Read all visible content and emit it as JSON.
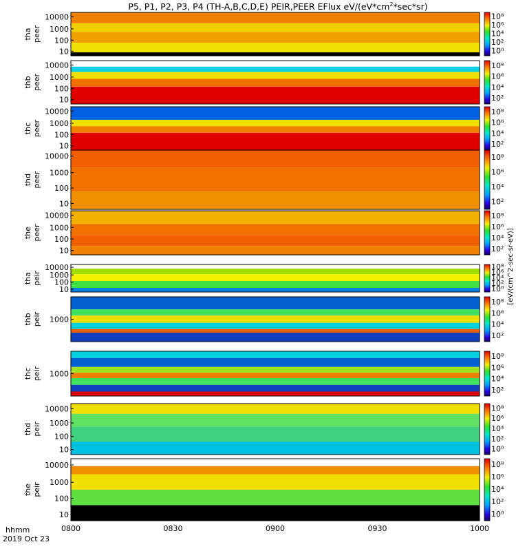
{
  "chart_data": {
    "type": "heatmap",
    "title": "P5, P1, P2, P3, P4 (TH-A,B,C,D,E) PEIR,PEER EFlux eV/(eV*cm²*sec*sr)",
    "title_parts": {
      "main": "P5, P1, P2, P3, P4 (TH-A,B,C,D,E) PEIR,PEER EFlux eV/(eV*cm",
      "sup": "2",
      "tail": "*sec*sr)"
    },
    "x_stamp": [
      "hhmm",
      "2019 Oct 23"
    ],
    "xticks": [
      "0800",
      "0830",
      "0900",
      "0930",
      "1000"
    ],
    "x_range": [
      "08:00",
      "10:00"
    ],
    "colorbar": {
      "label": "[eV/(cm^2-sec-sr-eV)]",
      "ticks": [
        "10⁸",
        "10⁶",
        "10⁴",
        "10²",
        "10⁰"
      ],
      "colormap": "rainbow"
    },
    "panels": [
      {
        "ylabel": [
          "tha",
          "peer"
        ],
        "yticks": [
          "10000",
          "1000",
          "100",
          "10"
        ],
        "scale": "log",
        "colorbar_ticks": [
          "10⁸",
          "10⁶",
          "10⁴",
          "10²",
          "10⁰"
        ]
      },
      {
        "ylabel": [
          "thb",
          "peer"
        ],
        "yticks": [
          "10000",
          "1000",
          "100",
          "10"
        ],
        "scale": "log",
        "colorbar_ticks": [
          "10⁸",
          "10⁶",
          "10⁴",
          "10²"
        ]
      },
      {
        "ylabel": [
          "thc",
          "peer"
        ],
        "yticks": [
          "10000",
          "1000",
          "100",
          "10"
        ],
        "scale": "log",
        "colorbar_ticks": [
          "10⁸",
          "10⁶",
          "10⁴",
          "10²"
        ]
      },
      {
        "ylabel": [
          "thd",
          "peer"
        ],
        "yticks": [
          "10000",
          "1000",
          "100",
          "10"
        ],
        "scale": "log",
        "colorbar_ticks": [
          "10⁸",
          "10⁶",
          "10⁴",
          "10²"
        ]
      },
      {
        "ylabel": [
          "the",
          "peer"
        ],
        "yticks": [
          "10000",
          "1000",
          "100",
          "10"
        ],
        "scale": "log",
        "colorbar_ticks": [
          "10⁸",
          "10⁶",
          "10⁴",
          "10²"
        ]
      },
      {
        "ylabel": [
          "tha",
          "peir"
        ],
        "yticks": [
          "10000",
          "1000",
          "100",
          "10"
        ],
        "scale": "log",
        "colorbar_ticks": [
          "10⁸",
          "10⁶",
          "10⁴",
          "10²",
          "10⁰"
        ]
      },
      {
        "ylabel": [
          "thb",
          "peir"
        ],
        "yticks": [
          "1000"
        ],
        "scale": "log",
        "colorbar_ticks": [
          "10⁸",
          "10⁶",
          "10⁴",
          "10²"
        ]
      },
      {
        "ylabel": [
          "thc",
          "peir"
        ],
        "yticks": [
          "1000"
        ],
        "scale": "log",
        "colorbar_ticks": [
          "10⁸",
          "10⁶",
          "10⁴",
          "10²"
        ]
      },
      {
        "ylabel": [
          "thd",
          "peir"
        ],
        "yticks": [
          "10000",
          "1000",
          "100",
          "10"
        ],
        "scale": "log",
        "colorbar_ticks": [
          "10⁸",
          "10⁶",
          "10⁴",
          "10²",
          "10⁰"
        ]
      },
      {
        "ylabel": [
          "the",
          "peir"
        ],
        "yticks": [
          "10000",
          "1000",
          "100",
          "10"
        ],
        "scale": "log",
        "colorbar_ticks": [
          "10⁸",
          "10⁶",
          "10⁴",
          "10²",
          "10⁰"
        ]
      }
    ]
  }
}
